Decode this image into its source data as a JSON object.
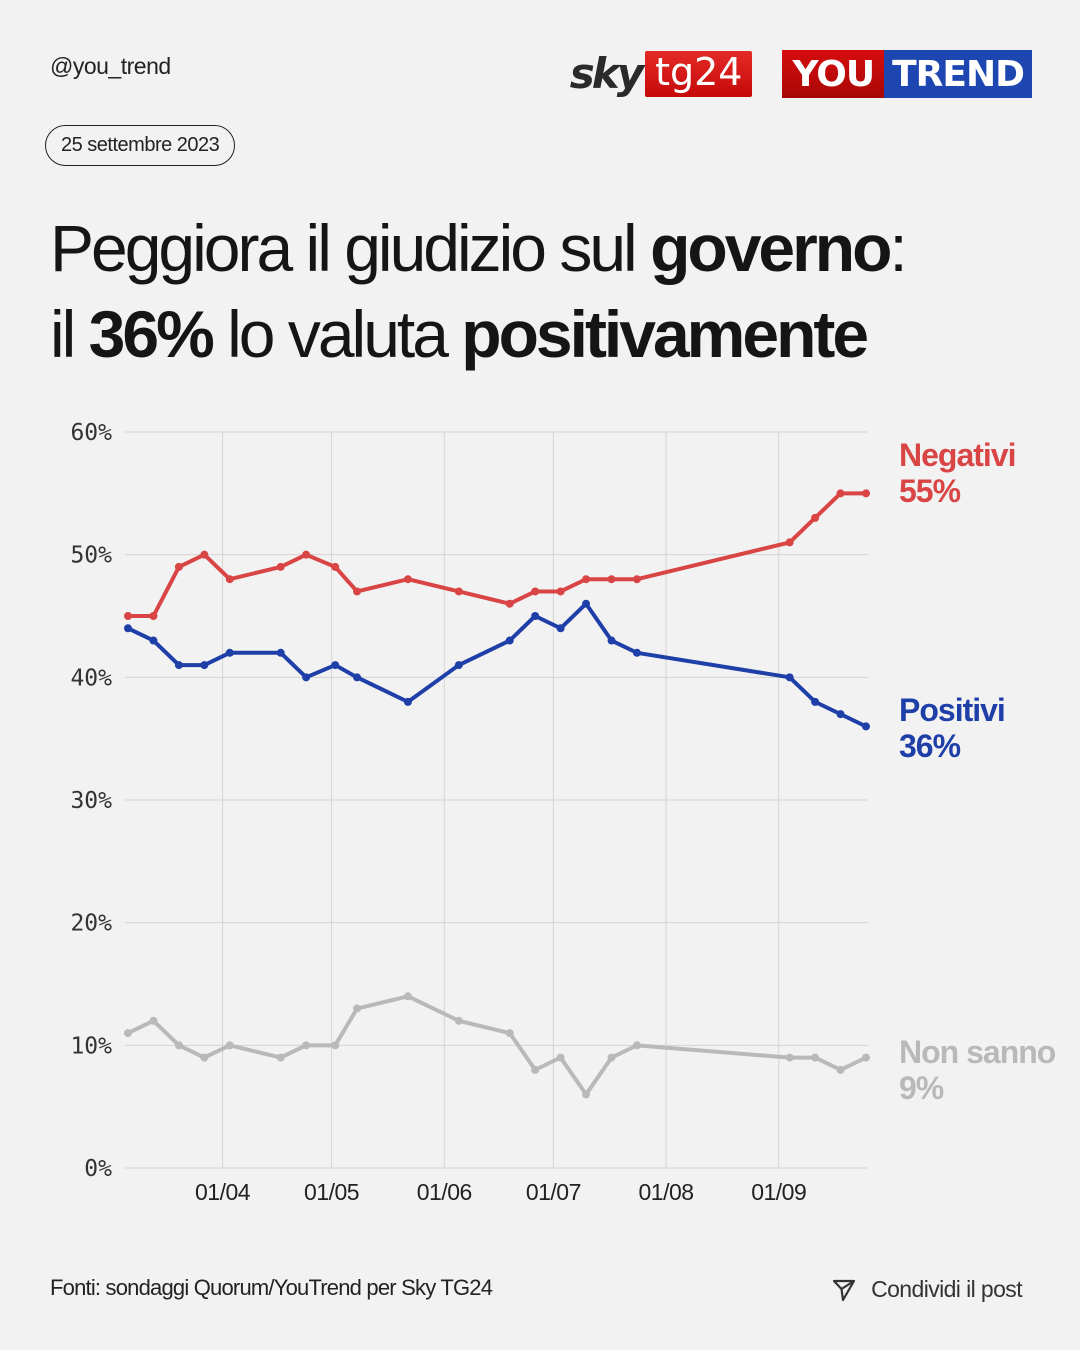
{
  "header": {
    "handle": "@you_trend",
    "logo_sky_word": "sky",
    "logo_sky_box": "tg24",
    "logo_yt_left": "YOU",
    "logo_yt_right": "TREND",
    "date": "25 settembre 2023"
  },
  "title": {
    "line1_regular": "Peggiora il giudizio sul ",
    "line1_bold": "governo",
    "line1_end": ":",
    "line2_a": "il ",
    "line2_bold1": "36%",
    "line2_b": " lo valuta ",
    "line2_bold2": "positivamente"
  },
  "footer": {
    "source": "Fonti: sondaggi Quorum/YouTrend per Sky TG24",
    "share_label": "Condividi il post",
    "share_icon": "send-icon"
  },
  "colors": {
    "negativi": "#d94545",
    "positivi": "#1f3fa8",
    "non_sanno": "#b9b9b9",
    "background": "#f2f2f2",
    "grid": "#d4d4d4"
  },
  "chart_data": {
    "type": "line",
    "title": "Peggiora il giudizio sul governo: il 36% lo valuta positivamente",
    "xlabel": "",
    "ylabel": "",
    "ylim": [
      0,
      60
    ],
    "yticks": [
      0,
      10,
      20,
      30,
      40,
      50,
      60
    ],
    "ytick_labels": [
      "0%",
      "10%",
      "20%",
      "30%",
      "40%",
      "50%",
      "60%"
    ],
    "xticks": [
      "2023-04-01",
      "2023-05-01",
      "2023-06-01",
      "2023-07-01",
      "2023-08-01",
      "2023-09-01"
    ],
    "xtick_labels": [
      "01/04",
      "01/05",
      "01/06",
      "01/07",
      "01/08",
      "01/09"
    ],
    "xlim": [
      "2023-03-06",
      "2023-09-25"
    ],
    "grid": true,
    "legend": "direct labels at right end of lines",
    "x": [
      "2023-03-06",
      "2023-03-13",
      "2023-03-20",
      "2023-03-27",
      "2023-04-03",
      "2023-04-17",
      "2023-04-24",
      "2023-05-02",
      "2023-05-08",
      "2023-05-22",
      "2023-06-05",
      "2023-06-19",
      "2023-06-26",
      "2023-07-03",
      "2023-07-10",
      "2023-07-17",
      "2023-07-24",
      "2023-09-04",
      "2023-09-11",
      "2023-09-18",
      "2023-09-25"
    ],
    "series": [
      {
        "name": "Negativi",
        "label_value": "55%",
        "color": "#d94545",
        "values": [
          45,
          45,
          49,
          50,
          48,
          49,
          50,
          49,
          47,
          48,
          47,
          46,
          47,
          47,
          48,
          48,
          48,
          51,
          53,
          55,
          55
        ]
      },
      {
        "name": "Positivi",
        "label_value": "36%",
        "color": "#1f3fa8",
        "values": [
          44,
          43,
          41,
          41,
          42,
          42,
          40,
          41,
          40,
          38,
          41,
          43,
          45,
          44,
          46,
          43,
          42,
          40,
          38,
          37,
          36
        ]
      },
      {
        "name": "Non sanno",
        "label_value": "9%",
        "color": "#b9b9b9",
        "values": [
          11,
          12,
          10,
          9,
          10,
          9,
          10,
          10,
          13,
          14,
          12,
          11,
          8,
          9,
          6,
          9,
          10,
          9,
          9,
          8,
          9
        ]
      }
    ]
  }
}
